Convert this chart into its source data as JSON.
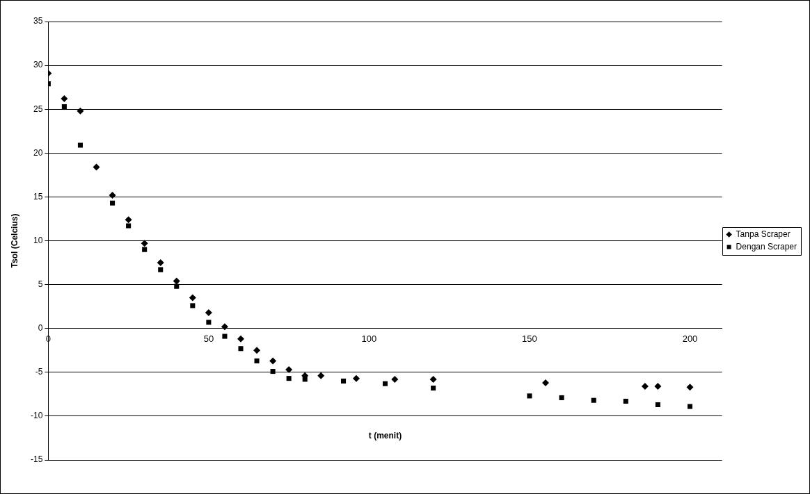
{
  "chart_data": {
    "type": "scatter",
    "xlabel": "t (menit)",
    "ylabel": "Tsol (Celcius)",
    "xlim": [
      0,
      210
    ],
    "xticks": [
      0,
      50,
      100,
      150,
      200
    ],
    "ylim": [
      -15,
      35
    ],
    "yticks": [
      -15,
      -10,
      -5,
      0,
      5,
      10,
      15,
      20,
      25,
      30,
      35
    ],
    "grid": "y",
    "legend": "right",
    "series": [
      {
        "name": "Tanpa Scraper",
        "color": "#000000",
        "marker": "diamond",
        "x": [
          0,
          5,
          10,
          15,
          20,
          25,
          30,
          35,
          40,
          45,
          50,
          55,
          60,
          65,
          70,
          75,
          80,
          85,
          96,
          108,
          120,
          155,
          186,
          190,
          200
        ],
        "values": [
          29.1,
          26.2,
          24.8,
          18.4,
          15.2,
          12.4,
          9.7,
          7.5,
          5.4,
          3.5,
          1.8,
          0.2,
          -1.2,
          -2.5,
          -3.7,
          -4.7,
          -5.4,
          -5.4,
          -5.7,
          -5.8,
          -5.8,
          -6.2,
          -6.6,
          -6.6,
          -6.7
        ]
      },
      {
        "name": "Dengan Scraper",
        "color": "#000000",
        "marker": "square",
        "x": [
          0,
          5,
          10,
          20,
          25,
          30,
          35,
          40,
          45,
          50,
          55,
          60,
          65,
          70,
          75,
          80,
          92,
          105,
          120,
          150,
          160,
          170,
          180,
          190,
          200
        ],
        "values": [
          27.9,
          25.3,
          20.9,
          14.3,
          11.7,
          9.0,
          6.7,
          4.8,
          2.6,
          0.7,
          -0.9,
          -2.3,
          -3.7,
          -4.9,
          -5.7,
          -5.8,
          -6.0,
          -6.3,
          -6.8,
          -7.7,
          -7.9,
          -8.2,
          -8.3,
          -8.7,
          -8.9
        ]
      }
    ]
  }
}
